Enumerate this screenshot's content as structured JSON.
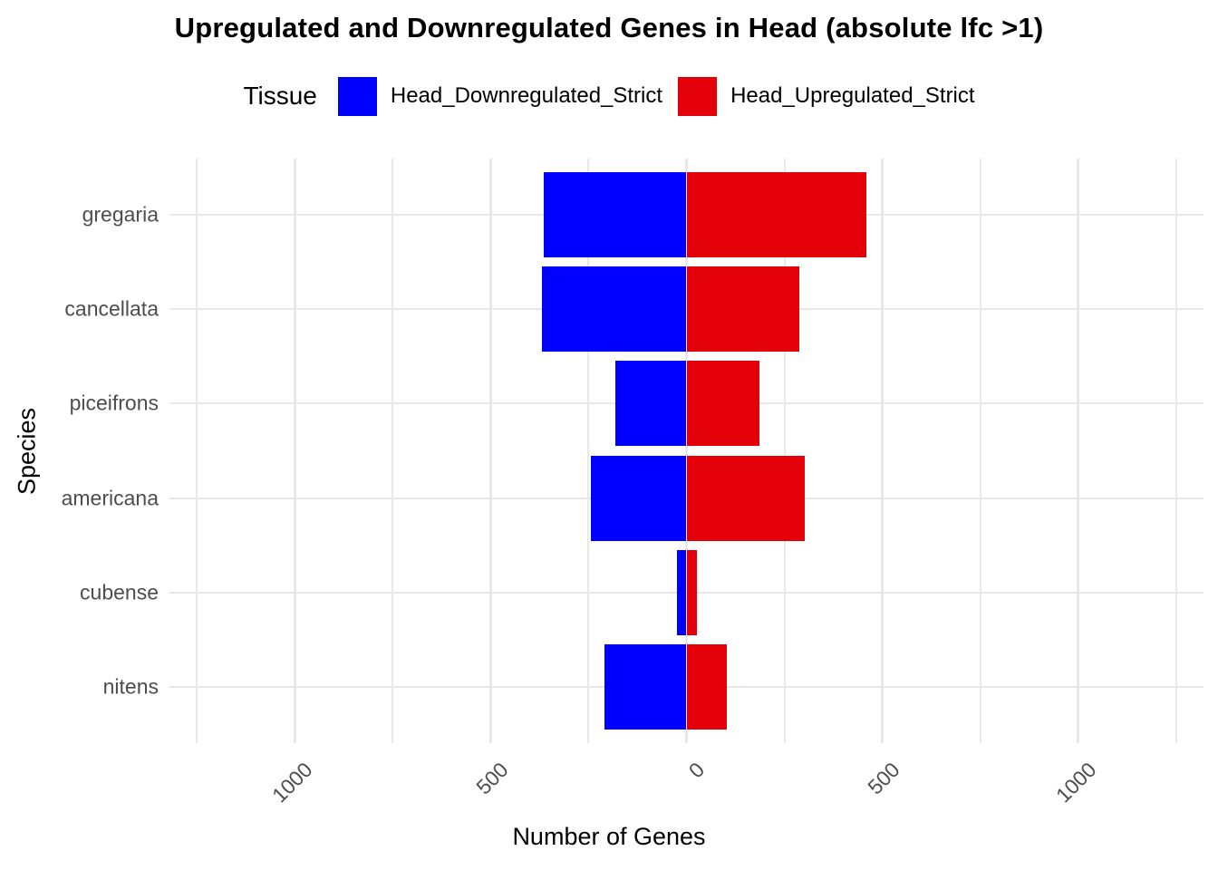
{
  "title": "Upregulated and Downregulated Genes in Head (absolute lfc >1)",
  "legend": {
    "title": "Tissue",
    "items": [
      {
        "label": "Head_Downregulated_Strict",
        "color": "#0000FF"
      },
      {
        "label": "Head_Upregulated_Strict",
        "color": "#E40008"
      }
    ]
  },
  "chart_data": {
    "type": "bar",
    "orientation": "horizontal-diverging",
    "title": "Upregulated and Downregulated Genes in Head (absolute lfc >1)",
    "xlabel": "Number of Genes",
    "ylabel": "Species",
    "categories": [
      "gregaria",
      "cancellata",
      "piceifrons",
      "americana",
      "cubense",
      "nitens"
    ],
    "series": [
      {
        "name": "Head_Downregulated_Strict",
        "color": "#0000FF",
        "values": [
          -364,
          -369,
          -181,
          -245,
          -25,
          -210
        ]
      },
      {
        "name": "Head_Upregulated_Strict",
        "color": "#E40008",
        "values": [
          460,
          288,
          187,
          301,
          27,
          104
        ]
      }
    ],
    "x_ticks": [
      -1000,
      -500,
      0,
      500,
      1000
    ],
    "x_tick_labels": [
      "1000",
      "500",
      "0",
      "500",
      "1000"
    ],
    "xlim": [
      -1320,
      1320
    ],
    "grid": {
      "major_every": 500,
      "minor_every": 250,
      "extent": 1250,
      "on": true,
      "color": "#E8E8E8"
    },
    "legend_position": "top",
    "bar_width_fraction": 0.9,
    "colors": {
      "grid": "#E8E8E8",
      "axis_text": "#4D4D4D",
      "text": "#000000",
      "background": "#FFFFFF"
    }
  }
}
